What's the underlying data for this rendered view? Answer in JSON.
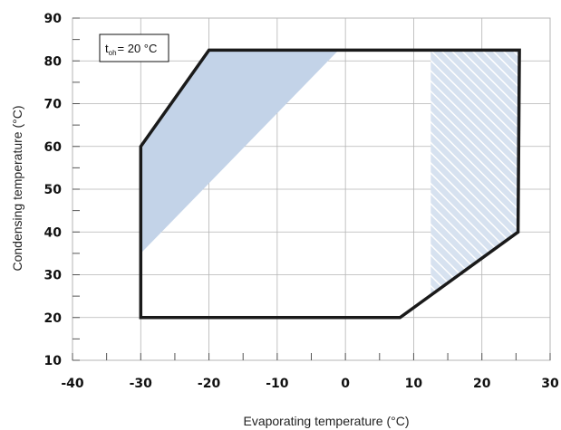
{
  "chart_data": {
    "type": "area",
    "xlabel": "Evaporating temperature (°C)",
    "ylabel": "Condensing temperature (°C)",
    "xlim": [
      -40,
      30
    ],
    "ylim": [
      10,
      90
    ],
    "x_ticks": [
      -40,
      -30,
      -20,
      -10,
      0,
      10,
      20,
      30
    ],
    "y_ticks": [
      10,
      20,
      30,
      40,
      50,
      60,
      70,
      80,
      90
    ],
    "grid": true,
    "annotation": {
      "prefix": "t",
      "subscript": "oh",
      "text": "= 20 °C"
    },
    "envelope": [
      [
        -30,
        20
      ],
      [
        -30,
        60
      ],
      [
        -20,
        82.5
      ],
      [
        25.5,
        82.5
      ],
      [
        25.3,
        40
      ],
      [
        8,
        20
      ]
    ],
    "shaded_region": [
      [
        -30,
        35
      ],
      [
        -30,
        60
      ],
      [
        -20,
        82.5
      ],
      [
        -1,
        82.5
      ]
    ],
    "hatched_region": [
      [
        12.5,
        25
      ],
      [
        12.5,
        82.5
      ],
      [
        25.5,
        82.5
      ],
      [
        25.3,
        40
      ]
    ],
    "colors": {
      "envelope": "#1a1a1a",
      "shaded": "#c3d3e8",
      "hatched_bg": "#d7e2f0",
      "hatched_line": "#ffffff",
      "grid": "#b4b4b4"
    }
  }
}
